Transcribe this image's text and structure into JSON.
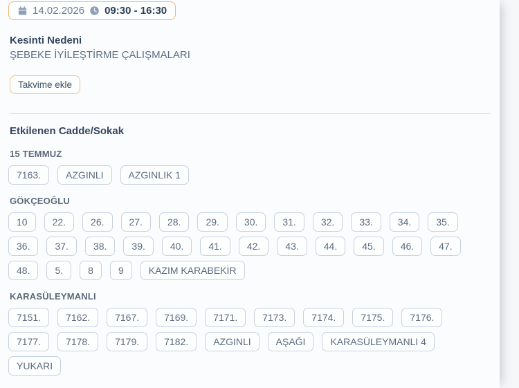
{
  "schedule": {
    "date": "14.02.2026",
    "time_range": "09:30 - 16:30",
    "calendar_icon": "calendar-icon",
    "clock_icon": "clock-icon"
  },
  "reason": {
    "label": "Kesinti Nedeni",
    "value": "ŞEBEKE İYİLEŞTİRME ÇALIŞMALARI"
  },
  "calendar_button_label": "Takvime ekle",
  "affected": {
    "title": "Etkilenen Cadde/Sokak",
    "groups": [
      {
        "name": "15 TEMMUZ",
        "chips": [
          "7163.",
          "AZGINLI",
          "AZGINLIK 1"
        ]
      },
      {
        "name": "GÖKÇEOĞLU",
        "chips": [
          "10",
          "22.",
          "26.",
          "27.",
          "28.",
          "29.",
          "30.",
          "31.",
          "32.",
          "33.",
          "34.",
          "35.",
          "36.",
          "37.",
          "38.",
          "39.",
          "40.",
          "41.",
          "42.",
          "43.",
          "44.",
          "45.",
          "46.",
          "47.",
          "48.",
          "5.",
          "8",
          "9",
          "KAZIM KARABEKİR"
        ]
      },
      {
        "name": "KARASÜLEYMANLI",
        "chips": [
          "7151.",
          "7162.",
          "7167.",
          "7169.",
          "7171.",
          "7173.",
          "7174.",
          "7175.",
          "7176.",
          "7177.",
          "7178.",
          "7179.",
          "7182.",
          "AZGINLI",
          "AŞAĞI",
          "KARASÜLEYMANLI 4",
          "YUKARI"
        ]
      }
    ]
  },
  "colors": {
    "accent_orange_border": "#f0b673",
    "heading_navy": "#33465e",
    "time_navy": "#2e4156",
    "body_gray_blue": "#5d7085",
    "chip_border": "#c6d2e0",
    "chip_text": "#5a6b80",
    "divider": "#ccd6e0",
    "page_background": "#f5f7f9",
    "panel_background": "#fbfcfd",
    "icon_gray_blue": "#8da0b8"
  }
}
